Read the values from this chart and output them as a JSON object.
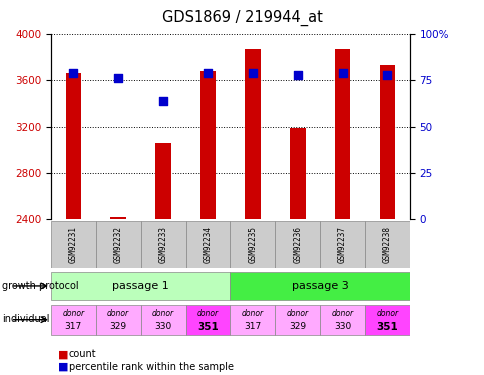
{
  "title": "GDS1869 / 219944_at",
  "samples": [
    "GSM92231",
    "GSM92232",
    "GSM92233",
    "GSM92234",
    "GSM92235",
    "GSM92236",
    "GSM92237",
    "GSM92238"
  ],
  "count_values": [
    3660,
    2420,
    3060,
    3680,
    3870,
    3190,
    3870,
    3730
  ],
  "percentile_values": [
    79,
    76,
    64,
    79,
    79,
    78,
    79,
    78
  ],
  "count_base": 2400,
  "ylim": [
    2400,
    4000
  ],
  "yticks": [
    2400,
    2800,
    3200,
    3600,
    4000
  ],
  "right_yticks": [
    0,
    25,
    50,
    75,
    100
  ],
  "right_ylim": [
    0,
    100
  ],
  "bar_color": "#cc0000",
  "dot_color": "#0000cc",
  "passage1_light": "#bbffbb",
  "passage3_dark": "#44ee44",
  "donor_light": "#ffaaff",
  "donor_dark": "#ff44ff",
  "sample_bg": "#cccccc",
  "bar_width": 0.35,
  "dot_size": 28,
  "left_tick_color": "#cc0000",
  "right_tick_color": "#0000cc",
  "legend_count": "count",
  "legend_percentile": "percentile rank within the sample"
}
